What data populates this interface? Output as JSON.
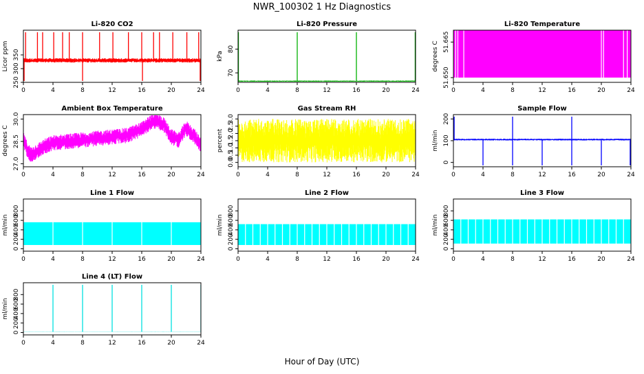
{
  "title": "NWR_100302 1 Hz Diagnostics",
  "xlabel": "Hour of Day (UTC)",
  "chart_data": [
    {
      "type": "line",
      "title": "Li-820 CO2",
      "ylabel": "Licor ppm",
      "xlim": [
        0,
        24
      ],
      "ylim": [
        250,
        440
      ],
      "xticks": [
        0,
        4,
        8,
        12,
        16,
        20,
        24
      ],
      "yticks": [
        250,
        300,
        350
      ],
      "color": "#ff0000",
      "series": [
        {
          "baseline": 330,
          "noise": 6,
          "x": [
            0,
            2,
            4,
            6,
            8,
            10,
            12,
            14,
            16,
            18,
            20,
            22,
            24
          ],
          "y": [
            330,
            330,
            330,
            330,
            330,
            330,
            330,
            330,
            330,
            330,
            330,
            330,
            330
          ],
          "spikes_up": [
            0.3,
            1.9,
            2.6,
            4.1,
            5.3,
            6.2,
            8.0,
            10.3,
            12.1,
            14.2,
            16.0,
            17.6,
            18.4,
            20.2,
            22.1,
            23.7
          ],
          "spikes_down": [
            0.1,
            8.0,
            16.1,
            23.9
          ]
        }
      ]
    },
    {
      "type": "line",
      "title": "Li-820 Pressure",
      "ylabel": "kPa",
      "xlim": [
        0,
        24
      ],
      "ylim": [
        66,
        88
      ],
      "xticks": [
        0,
        4,
        8,
        12,
        16,
        20,
        24
      ],
      "yticks": [
        70,
        80
      ],
      "color": "#00b000",
      "series": [
        {
          "baseline": 66.5,
          "noise": 0.2,
          "x": [
            0,
            4,
            8,
            12,
            16,
            20,
            24
          ],
          "y": [
            66.5,
            66.5,
            66.5,
            66.5,
            66.5,
            66.5,
            66.5
          ],
          "spikes_up": [
            0.05,
            8.0,
            16.0,
            23.95
          ]
        }
      ]
    },
    {
      "type": "area",
      "title": "Li-820 Temperature",
      "ylabel": "degrees C",
      "xlim": [
        0,
        24
      ],
      "ylim": [
        51.648,
        51.67
      ],
      "xticks": [
        0,
        4,
        8,
        12,
        16,
        20,
        24
      ],
      "yticks": [
        51.65,
        51.665
      ],
      "color": "#ff00ff",
      "series": [
        {
          "band_low": 51.65,
          "band_high": 51.67,
          "gaps": [
            0.3,
            0.6,
            1.4,
            20.0,
            20.3,
            23.0,
            23.5
          ]
        }
      ]
    },
    {
      "type": "line",
      "title": "Ambient Box Temperature",
      "ylabel": "degrees C",
      "xlim": [
        0,
        24
      ],
      "ylim": [
        26.8,
        30.3
      ],
      "xticks": [
        0,
        4,
        8,
        12,
        16,
        20,
        24
      ],
      "yticks": [
        27.0,
        28.5,
        30.0
      ],
      "color": "#ff00ff",
      "series": [
        {
          "noise": 0.4,
          "x": [
            0,
            0.5,
            1,
            2,
            3,
            4,
            6,
            8,
            10,
            12,
            14,
            16,
            17,
            18,
            19,
            20,
            21,
            22,
            23,
            24
          ],
          "y": [
            28.6,
            28.0,
            27.6,
            27.9,
            28.2,
            28.4,
            28.5,
            28.6,
            28.7,
            28.8,
            28.9,
            29.3,
            29.7,
            29.9,
            29.6,
            28.8,
            28.6,
            29.4,
            28.9,
            28.3
          ]
        }
      ]
    },
    {
      "type": "line",
      "title": "Gas Stream RH",
      "ylabel": "percent",
      "xlim": [
        0,
        24
      ],
      "ylim": [
        -0.3,
        3.3
      ],
      "xticks": [
        0,
        4,
        8,
        12,
        16,
        20,
        24
      ],
      "yticks": [
        0.0,
        0.5,
        1.0,
        1.5,
        2.0,
        2.5,
        3.0
      ],
      "color": "#ffff00",
      "series": [
        {
          "band_low": 0.0,
          "band_high": 3.0,
          "x": [
            0,
            4,
            8,
            12,
            16,
            20,
            24
          ],
          "y": [
            1.5,
            1.5,
            1.5,
            1.5,
            1.5,
            1.5,
            1.5
          ]
        }
      ]
    },
    {
      "type": "line",
      "title": "Sample Flow",
      "ylabel": "ml/min",
      "xlim": [
        0,
        24
      ],
      "ylim": [
        -20,
        220
      ],
      "xticks": [
        0,
        4,
        8,
        12,
        16,
        20,
        24
      ],
      "yticks": [
        0,
        100,
        200
      ],
      "color": "#0000ff",
      "series": [
        {
          "baseline": 105,
          "noise": 3,
          "x": [
            0,
            4,
            8,
            12,
            16,
            20,
            24
          ],
          "y": [
            105,
            105,
            105,
            105,
            105,
            105,
            105
          ],
          "spikes_up": [
            0.1,
            8.0,
            16.0
          ],
          "spikes_down": [
            4.0,
            8.0,
            12.0,
            16.0,
            20.0,
            23.9
          ]
        }
      ]
    },
    {
      "type": "area",
      "title": "Line 1 Flow",
      "ylabel": "ml/min",
      "xlim": [
        0,
        24
      ],
      "ylim": [
        -50,
        1050
      ],
      "xticks": [
        0,
        4,
        8,
        12,
        16,
        20,
        24
      ],
      "yticks": [
        0,
        200,
        400,
        600,
        800
      ],
      "color": "#00ffff",
      "series": [
        {
          "band_low": 80,
          "band_high": 560,
          "gaps": [
            4.0,
            8.0,
            12.0,
            16.0,
            20.0
          ]
        }
      ]
    },
    {
      "type": "area",
      "title": "Line 2 Flow",
      "ylabel": "ml/min",
      "xlim": [
        0,
        24
      ],
      "ylim": [
        -50,
        1050
      ],
      "xticks": [
        0,
        4,
        8,
        12,
        16,
        20,
        24
      ],
      "yticks": [
        0,
        200,
        400,
        600,
        800
      ],
      "color": "#00ffff",
      "series": [
        {
          "band_low": 80,
          "band_high": 520,
          "gaps": [
            1.0,
            2.0,
            3.0,
            4.0,
            5.0,
            6.0,
            7.0,
            8.0,
            9.0,
            10.0,
            11.0,
            12.0,
            13.0,
            14.0,
            15.0,
            16.0,
            17.0,
            18.0,
            19.0,
            20.0,
            21.0,
            22.0,
            23.0
          ]
        }
      ]
    },
    {
      "type": "area",
      "title": "Line 3 Flow",
      "ylabel": "ml/min",
      "xlim": [
        0,
        24
      ],
      "ylim": [
        -50,
        1050
      ],
      "xticks": [
        0,
        4,
        8,
        12,
        16,
        20,
        24
      ],
      "yticks": [
        0,
        200,
        400,
        600,
        800
      ],
      "color": "#00ffff",
      "series": [
        {
          "band_low": 110,
          "band_high": 620,
          "gaps": [
            1.0,
            2.0,
            3.0,
            4.0,
            5.0,
            6.0,
            7.0,
            8.0,
            9.0,
            10.0,
            11.0,
            12.0,
            13.0,
            14.0,
            15.0,
            16.0,
            17.0,
            18.0,
            19.0,
            20.0,
            21.0,
            22.0,
            23.0
          ]
        }
      ]
    },
    {
      "type": "line",
      "title": "Line 4 (LT) Flow",
      "ylabel": "ml/min",
      "xlim": [
        0,
        24
      ],
      "ylim": [
        -50,
        1050
      ],
      "xticks": [
        0,
        4,
        8,
        12,
        16,
        20,
        24
      ],
      "yticks": [
        0,
        200,
        400,
        600,
        800
      ],
      "color": "#00e0e0",
      "series": [
        {
          "baseline": 15,
          "noise": 2,
          "x": [
            0,
            4,
            8,
            12,
            16,
            20,
            24
          ],
          "y": [
            15,
            15,
            15,
            15,
            15,
            15,
            15
          ],
          "spikes_up": [
            4.0,
            8.0,
            12.0,
            16.0,
            20.0,
            24.0
          ]
        }
      ]
    }
  ]
}
